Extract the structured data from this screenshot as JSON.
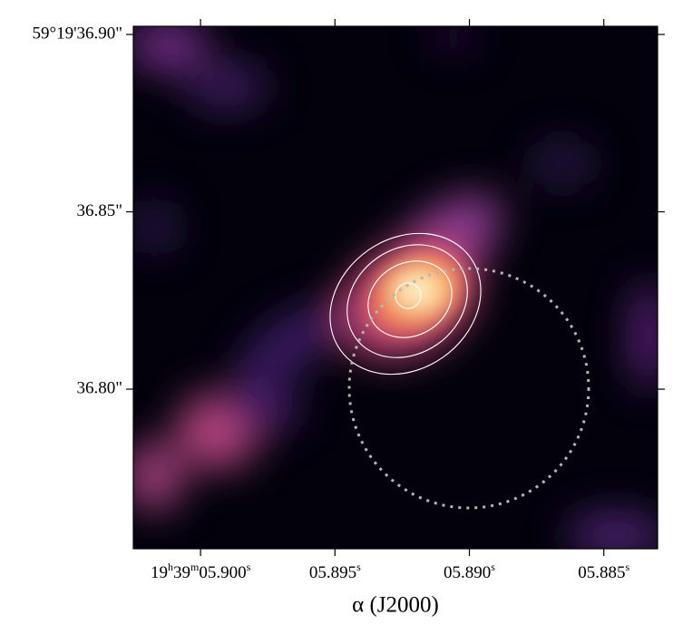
{
  "chart_data": {
    "type": "image",
    "xlabel": "α (J2000)",
    "xlim": [
      5.9025,
      5.883
    ],
    "xticks": [
      {
        "value": 5.9,
        "label": "19h39m05.900s"
      },
      {
        "value": 5.895,
        "label": "05.895s"
      },
      {
        "value": 5.89,
        "label": "05.890s"
      },
      {
        "value": 5.885,
        "label": "05.885s"
      }
    ],
    "ylim": [
      36.755,
      36.9023
    ],
    "yticks": [
      {
        "value": 36.8,
        "label": "36.80\""
      },
      {
        "value": 36.85,
        "label": "36.85\""
      },
      {
        "value": 36.9,
        "label": "59°19'36.90\""
      }
    ]
  }
}
